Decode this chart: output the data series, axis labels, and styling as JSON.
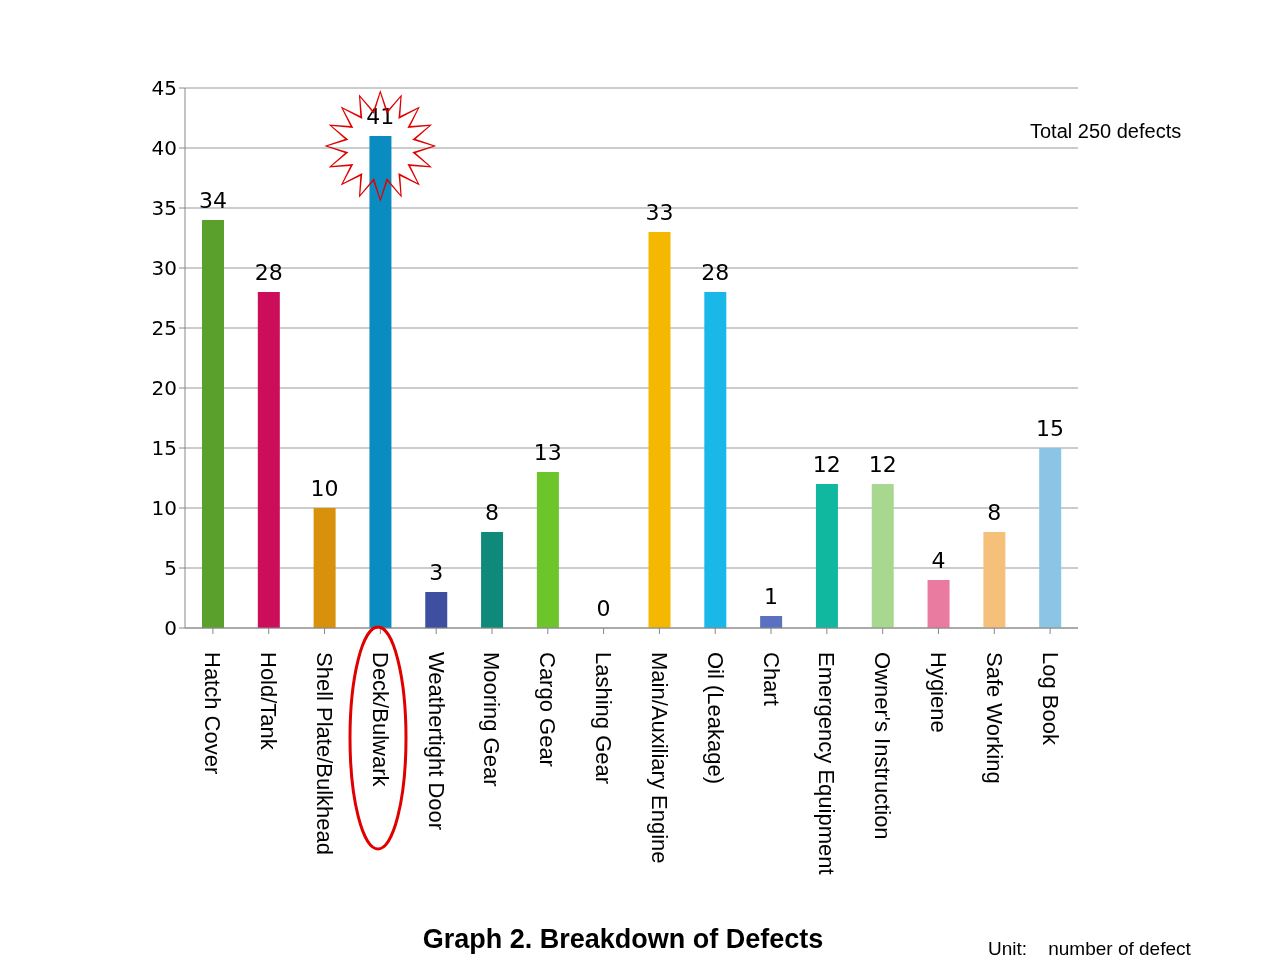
{
  "chart_data": {
    "type": "bar",
    "title": "Graph 2. Breakdown of Defects",
    "categories": [
      "Hatch Cover",
      "Hold/Tank",
      "Shell Plate/Bulkhead",
      "Deck/Bulwark",
      "Weathertight Door",
      "Mooring Gear",
      "Cargo Gear",
      "Lashing Gear",
      "Main/Auxiliary Engine",
      "Oil (Leakage)",
      "Chart",
      "Emergency Equipment",
      "Owner's Instruction",
      "Hygiene",
      "Safe Working",
      "Log Book"
    ],
    "values": [
      34,
      28,
      10,
      41,
      3,
      8,
      13,
      0,
      33,
      28,
      1,
      12,
      12,
      4,
      8,
      15
    ],
    "colors": [
      "#5aa02c",
      "#cc0e5a",
      "#d9900a",
      "#0b8cc0",
      "#3d4f9e",
      "#0f8a7a",
      "#6cc52a",
      "#888888",
      "#f5b800",
      "#1ab8e8",
      "#5a70c0",
      "#10b8a0",
      "#a8d890",
      "#e97aa0",
      "#f5c07a",
      "#8cc4e6"
    ],
    "ylim": [
      0,
      45
    ],
    "yticks": [
      0,
      5,
      10,
      15,
      20,
      25,
      30,
      35,
      40,
      45
    ],
    "grid": "y",
    "data_labels": true,
    "annotations": [
      "Total 250 defects",
      "Unit:    number of defect"
    ]
  }
}
